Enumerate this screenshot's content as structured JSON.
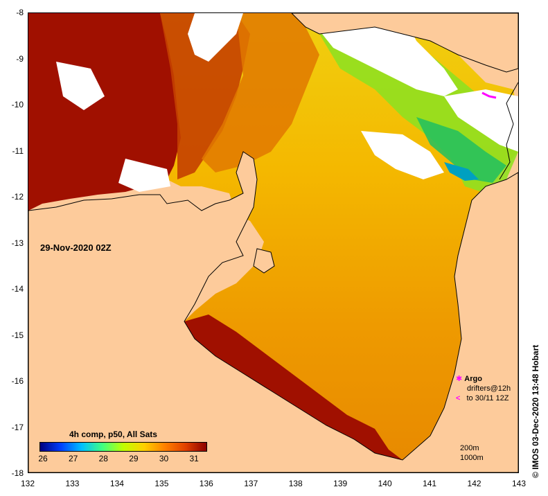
{
  "map": {
    "lon_min": 132,
    "lon_max": 143,
    "lat_min": -18,
    "lat_max": -8,
    "x_ticks": [
      "132",
      "133",
      "134",
      "135",
      "136",
      "137",
      "138",
      "139",
      "140",
      "141",
      "142",
      "143"
    ],
    "y_ticks": [
      "-8",
      "-9",
      "-10",
      "-11",
      "-12",
      "-13",
      "-14",
      "-15",
      "-16",
      "-17",
      "-18"
    ],
    "land_color": "#fdcb9b",
    "cloud_color": "#ffffff"
  },
  "date_label": "29-Nov-2020 02Z",
  "colorbar": {
    "title": "4h comp, p50, All Sats",
    "ticks": [
      "26",
      "27",
      "28",
      "29",
      "30",
      "31"
    ],
    "min": 26,
    "max": 31.5,
    "colors": [
      "#00007f",
      "#0040ff",
      "#00c0ff",
      "#40ff80",
      "#c0ff00",
      "#ffd000",
      "#ff8000",
      "#e04000",
      "#8b0000"
    ]
  },
  "legend": {
    "argo_label": "Argo",
    "drifter_line1": "drifters@12h",
    "drifter_line2": "to 30/11 12Z",
    "argo_color": "#ff00ff",
    "drifter_color": "#ff00ff"
  },
  "depth": {
    "line1": "200m",
    "line2": "1000m"
  },
  "credit": "© IMOS 03-Dec-2020 13:48 Hobart"
}
